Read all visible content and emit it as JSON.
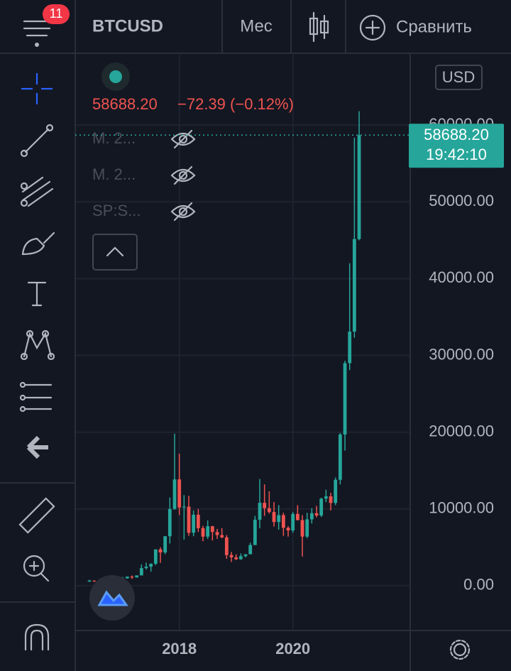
{
  "header": {
    "symbol": "BTCUSD",
    "interval": "Мес",
    "compare": "Сравнить",
    "badge": "11"
  },
  "legend": {
    "price": "58688.20",
    "change": "−72.39 (−0.12%)",
    "indicators": [
      "M. 2...",
      "M. 2...",
      "SP:S..."
    ]
  },
  "currency": "USD",
  "last_price": {
    "label": "58688.20",
    "time": "19:42:10"
  },
  "chart_data": {
    "type": "candlestick",
    "up_color": "#26a69a",
    "down_color": "#ef5350",
    "grid": true,
    "categories": [
      null,
      null,
      null,
      null,
      null,
      null,
      null,
      null,
      null,
      null,
      null,
      null,
      null,
      null,
      null,
      null,
      null,
      null,
      null,
      "2018",
      null,
      null,
      null,
      null,
      null,
      null,
      null,
      null,
      null,
      null,
      null,
      null,
      null,
      null,
      null,
      null,
      null,
      null,
      null,
      null,
      null,
      null,
      null,
      "2020",
      null,
      null,
      null,
      null,
      null,
      null,
      null,
      null,
      null,
      null,
      null,
      null,
      null,
      null
    ],
    "open": [
      530,
      670,
      620,
      575,
      608,
      700,
      745,
      965,
      965,
      1190,
      1080,
      1350,
      2300,
      2480,
      2870,
      4730,
      4340,
      6450,
      10000,
      13850,
      10200,
      10300,
      6900,
      9250,
      7500,
      6400,
      7750,
      7000,
      6600,
      6300,
      4000,
      3700,
      3450,
      3850,
      4100,
      5300,
      8600,
      10800,
      10100,
      9600,
      8300,
      9200,
      7550,
      7200,
      9350,
      8550,
      6400,
      8650,
      9450,
      9150,
      11350,
      11650,
      10780,
      13800,
      19700,
      28990,
      33100,
      45150
    ],
    "high": [
      780,
      700,
      630,
      620,
      740,
      760,
      980,
      1150,
      1200,
      1350,
      1350,
      2780,
      3000,
      2900,
      4750,
      5000,
      6470,
      11500,
      19800,
      17200,
      11800,
      11700,
      9800,
      10000,
      7800,
      8500,
      7800,
      7400,
      7500,
      6600,
      4400,
      4100,
      4200,
      4100,
      5600,
      9100,
      13900,
      13200,
      12300,
      10900,
      10500,
      9500,
      7750,
      9600,
      10500,
      9200,
      9500,
      10100,
      10400,
      11450,
      12500,
      12100,
      14100,
      19900,
      29300,
      42000,
      58350,
      61800
    ],
    "low": [
      520,
      480,
      470,
      590,
      600,
      690,
      740,
      750,
      920,
      890,
      1070,
      1340,
      2100,
      1830,
      2680,
      2980,
      4110,
      5500,
      9900,
      9200,
      6000,
      6500,
      6450,
      7000,
      5800,
      6100,
      5900,
      6100,
      6200,
      3500,
      3100,
      3350,
      3400,
      3700,
      4100,
      5300,
      7500,
      9100,
      9400,
      7700,
      7300,
      6500,
      6400,
      6900,
      8500,
      3800,
      6200,
      8100,
      8900,
      8950,
      10900,
      9800,
      10500,
      13200,
      17600,
      28100,
      32300,
      45000
    ],
    "close": [
      670,
      620,
      575,
      608,
      700,
      745,
      965,
      965,
      1190,
      1080,
      1350,
      2300,
      2480,
      2870,
      4730,
      4340,
      6450,
      10000,
      13850,
      10200,
      10300,
      6900,
      9250,
      7500,
      6400,
      7750,
      7000,
      6600,
      6300,
      4000,
      3700,
      3450,
      3850,
      4100,
      5300,
      8600,
      10800,
      10100,
      9600,
      8300,
      9200,
      7550,
      7200,
      9350,
      8550,
      6400,
      8650,
      9450,
      9150,
      11350,
      11650,
      10780,
      13800,
      19700,
      28990,
      33100,
      45150,
      58688.2
    ],
    "ylim": [
      -5833,
      69167
    ],
    "yticks": [
      {
        "value": 0,
        "label": "0.00"
      },
      {
        "value": 10000,
        "label": "10000.00"
      },
      {
        "value": 20000,
        "label": "20000.00"
      },
      {
        "value": 30000,
        "label": "30000.00"
      },
      {
        "value": 40000,
        "label": "40000.00"
      },
      {
        "value": 50000,
        "label": "50000.00"
      },
      {
        "value": 60000,
        "label": "60000.00"
      }
    ],
    "last_value": 58688.2
  }
}
